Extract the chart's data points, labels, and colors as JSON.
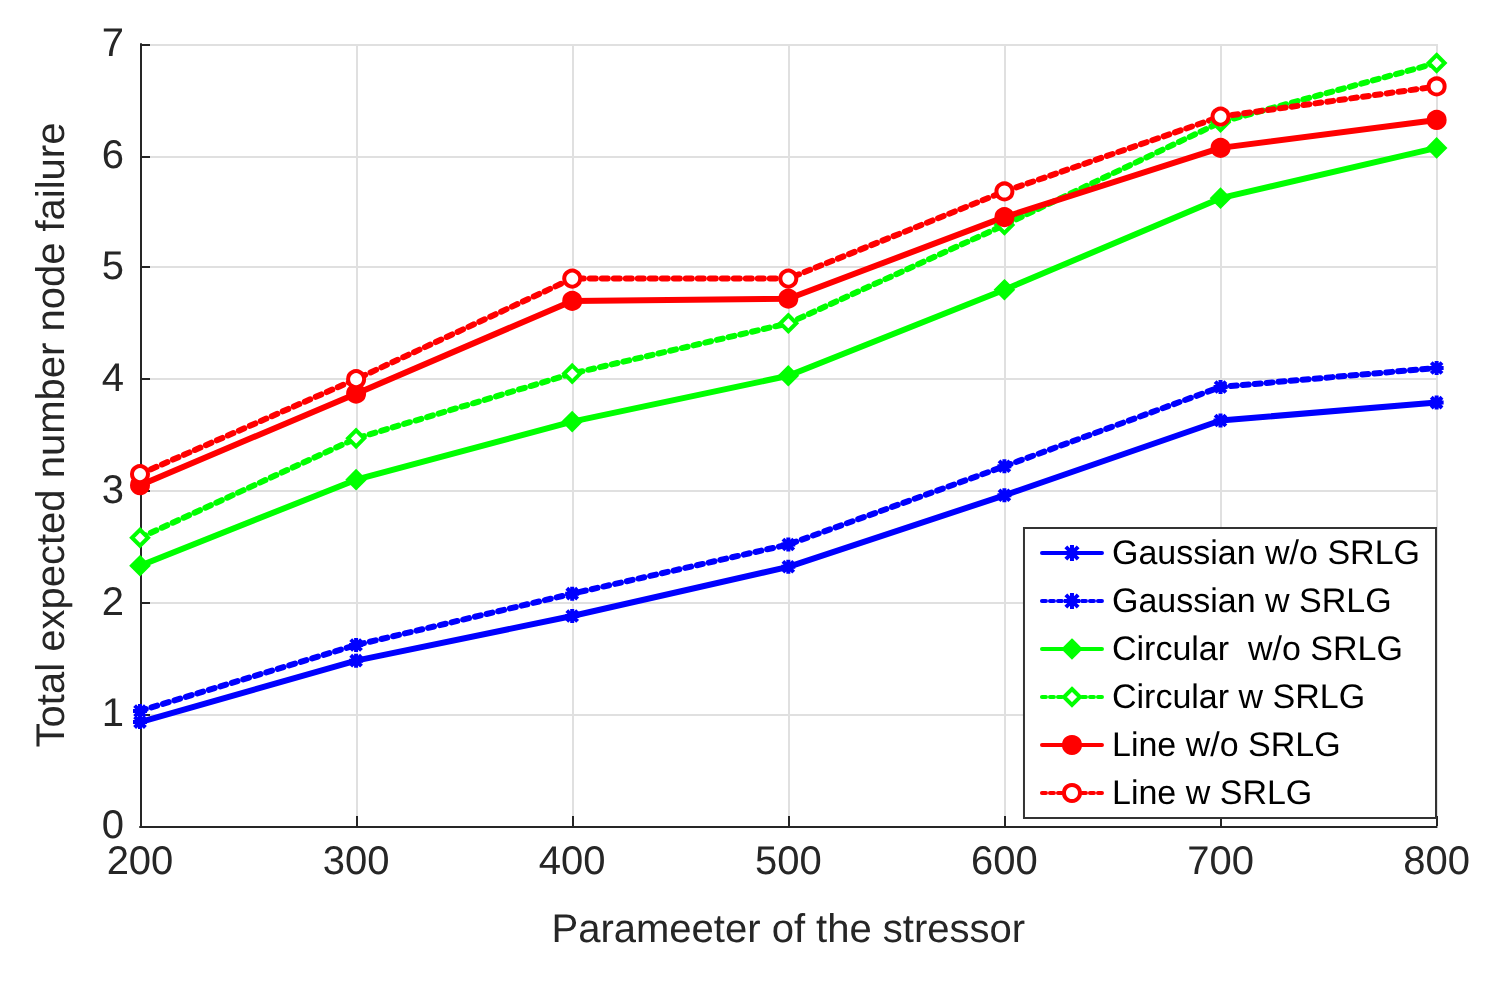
{
  "chart_data": {
    "type": "line",
    "xlabel": "Parameeter of the stressor",
    "ylabel": "Total expected number node failure",
    "x": [
      200,
      300,
      400,
      500,
      600,
      700,
      800
    ],
    "xlim": [
      200,
      800
    ],
    "xticks": [
      200,
      300,
      400,
      500,
      600,
      700,
      800
    ],
    "ylim": [
      0,
      7
    ],
    "yticks": [
      0,
      1,
      2,
      3,
      4,
      5,
      6,
      7
    ],
    "grid": true,
    "legend": "bottom right",
    "series": [
      {
        "name": "Gaussian w/o SRLG",
        "color": "#0000ff",
        "marker": "cross",
        "line_style": "solid",
        "values": [
          0.93,
          1.48,
          1.88,
          2.32,
          2.96,
          3.63,
          3.79
        ]
      },
      {
        "name": "Gaussian w SRLG",
        "color": "#0000ff",
        "marker": "cross",
        "line_style": "dotted",
        "values": [
          1.03,
          1.62,
          2.08,
          2.52,
          3.22,
          3.93,
          4.1
        ]
      },
      {
        "name": "Circular  w/o SRLG",
        "color": "#00ff00",
        "marker": "diamond",
        "line_style": "solid",
        "values": [
          2.33,
          3.1,
          3.62,
          4.03,
          4.8,
          5.62,
          6.07
        ]
      },
      {
        "name": "Circular w SRLG",
        "color": "#00ff00",
        "marker": "diamond",
        "line_style": "dotted",
        "values": [
          2.58,
          3.47,
          4.05,
          4.5,
          5.38,
          6.3,
          6.83
        ]
      },
      {
        "name": "Line w/o SRLG",
        "color": "#ff0000",
        "marker": "circle",
        "line_style": "solid",
        "values": [
          3.05,
          3.87,
          4.7,
          4.72,
          5.45,
          6.07,
          6.32
        ]
      },
      {
        "name": "Line w SRLG",
        "color": "#ff0000",
        "marker": "circle",
        "line_style": "dotted",
        "values": [
          3.15,
          4.0,
          4.9,
          4.9,
          5.68,
          6.35,
          6.62
        ]
      }
    ]
  }
}
